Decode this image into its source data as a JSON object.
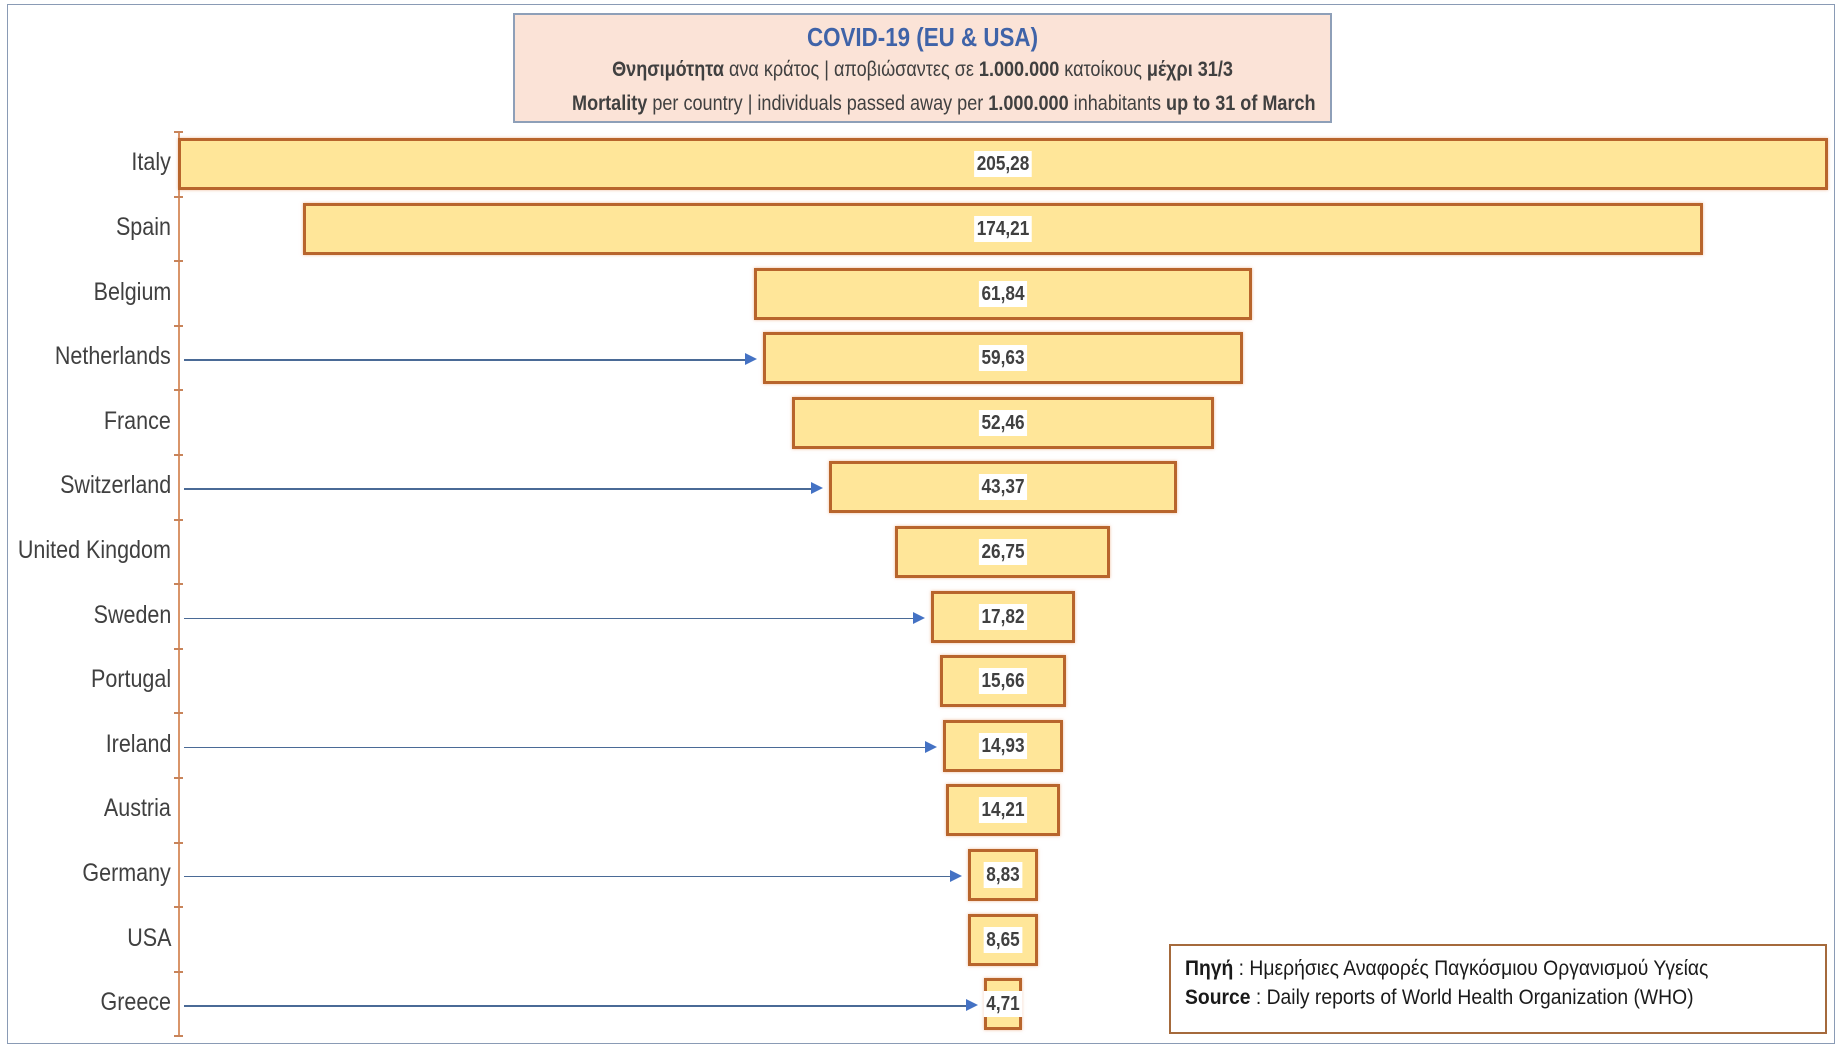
{
  "title": {
    "main": "COVID-19   (EU & USA)",
    "greek_line": {
      "b1": "Θνησιμότητα",
      "t1": " ανα κράτος | αποβιώσαντες σε ",
      "b2": "1.000.000",
      "t2": " κατοίκους ",
      "b3": "μέχρι 31/3"
    },
    "english_line": {
      "b1": "Mortality",
      "t1": " per country | individuals passed away per ",
      "b2": "1.000.000",
      "t2": " inhabitants ",
      "b3": "up to 31 of March"
    }
  },
  "source": {
    "greek_label": "Πηγή",
    "greek_text": "  : Ημερήσιες Αναφορές Παγκόσμιου Οργανισμού Υγείας",
    "english_label": "Source",
    "english_text": " :  Daily reports of World Health Organization (WHO)"
  },
  "colors": {
    "bar_fill": "#ffe699",
    "bar_border": "#b8652c",
    "title_bg": "#fbe3d7",
    "title_text": "#3f63a8",
    "arrow": "#4472c4"
  },
  "chart_data": {
    "type": "bar",
    "orientation": "horizontal-funnel",
    "title": "COVID-19 (EU & USA)",
    "subtitle": "Mortality per country | individuals passed away per 1.000.000 inhabitants up to 31 of March",
    "xlabel": "",
    "ylabel": "",
    "grid": false,
    "legend": null,
    "categories": [
      "Italy",
      "Spain",
      "Belgium",
      "Netherlands",
      "France",
      "Switzerland",
      "United Kingdom",
      "Sweden",
      "Portugal",
      "Ireland",
      "Austria",
      "Germany",
      "USA",
      "Greece"
    ],
    "values": [
      205.28,
      174.21,
      61.84,
      59.63,
      52.46,
      43.37,
      26.75,
      17.82,
      15.66,
      14.93,
      14.21,
      8.83,
      8.65,
      4.71
    ],
    "value_labels": [
      "205,28",
      "174,21",
      "61,84",
      "59,63",
      "52,46",
      "43,37",
      "26,75",
      "17,82",
      "15,66",
      "14,93",
      "14,21",
      "8,83",
      "8,65",
      "4,71"
    ],
    "highlighted_with_arrows": [
      "Netherlands",
      "Switzerland",
      "Sweden",
      "Ireland",
      "Germany",
      "Greece"
    ],
    "source": "Daily reports of World Health Organization (WHO)"
  }
}
